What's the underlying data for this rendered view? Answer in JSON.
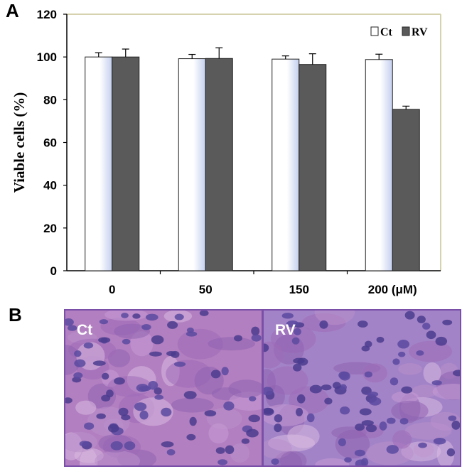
{
  "panels": {
    "a_label": "A",
    "b_label": "B"
  },
  "chart_data": {
    "type": "bar",
    "categories": [
      "0",
      "50",
      "150",
      "200 (μM)"
    ],
    "series": [
      {
        "name": "Ct",
        "values": [
          100,
          99.2,
          99.0,
          98.8
        ],
        "errors": [
          2.0,
          2.0,
          1.5,
          2.5
        ],
        "color": "#ffffff"
      },
      {
        "name": "RV",
        "values": [
          100,
          99.3,
          96.5,
          75.5
        ],
        "errors": [
          3.7,
          5.0,
          5.0,
          1.5
        ],
        "color": "#5a5a5a"
      }
    ],
    "xlabel": "",
    "ylabel": "Viable cells (%)",
    "ylim": [
      0,
      120
    ],
    "yticks": [
      "0",
      "20",
      "40",
      "60",
      "80",
      "100",
      "120"
    ],
    "legend": [
      {
        "name": "Ct",
        "label": "Ct",
        "color": "#ffffff"
      },
      {
        "name": "RV",
        "label": "RV",
        "color": "#5a5a5a"
      }
    ],
    "legend_position": "top-right",
    "frame_color": "#d6d2b0"
  },
  "micrographs": [
    {
      "label": "Ct",
      "description_color": "#b27fc0"
    },
    {
      "label": "RV",
      "description_color": "#a383c7"
    }
  ]
}
